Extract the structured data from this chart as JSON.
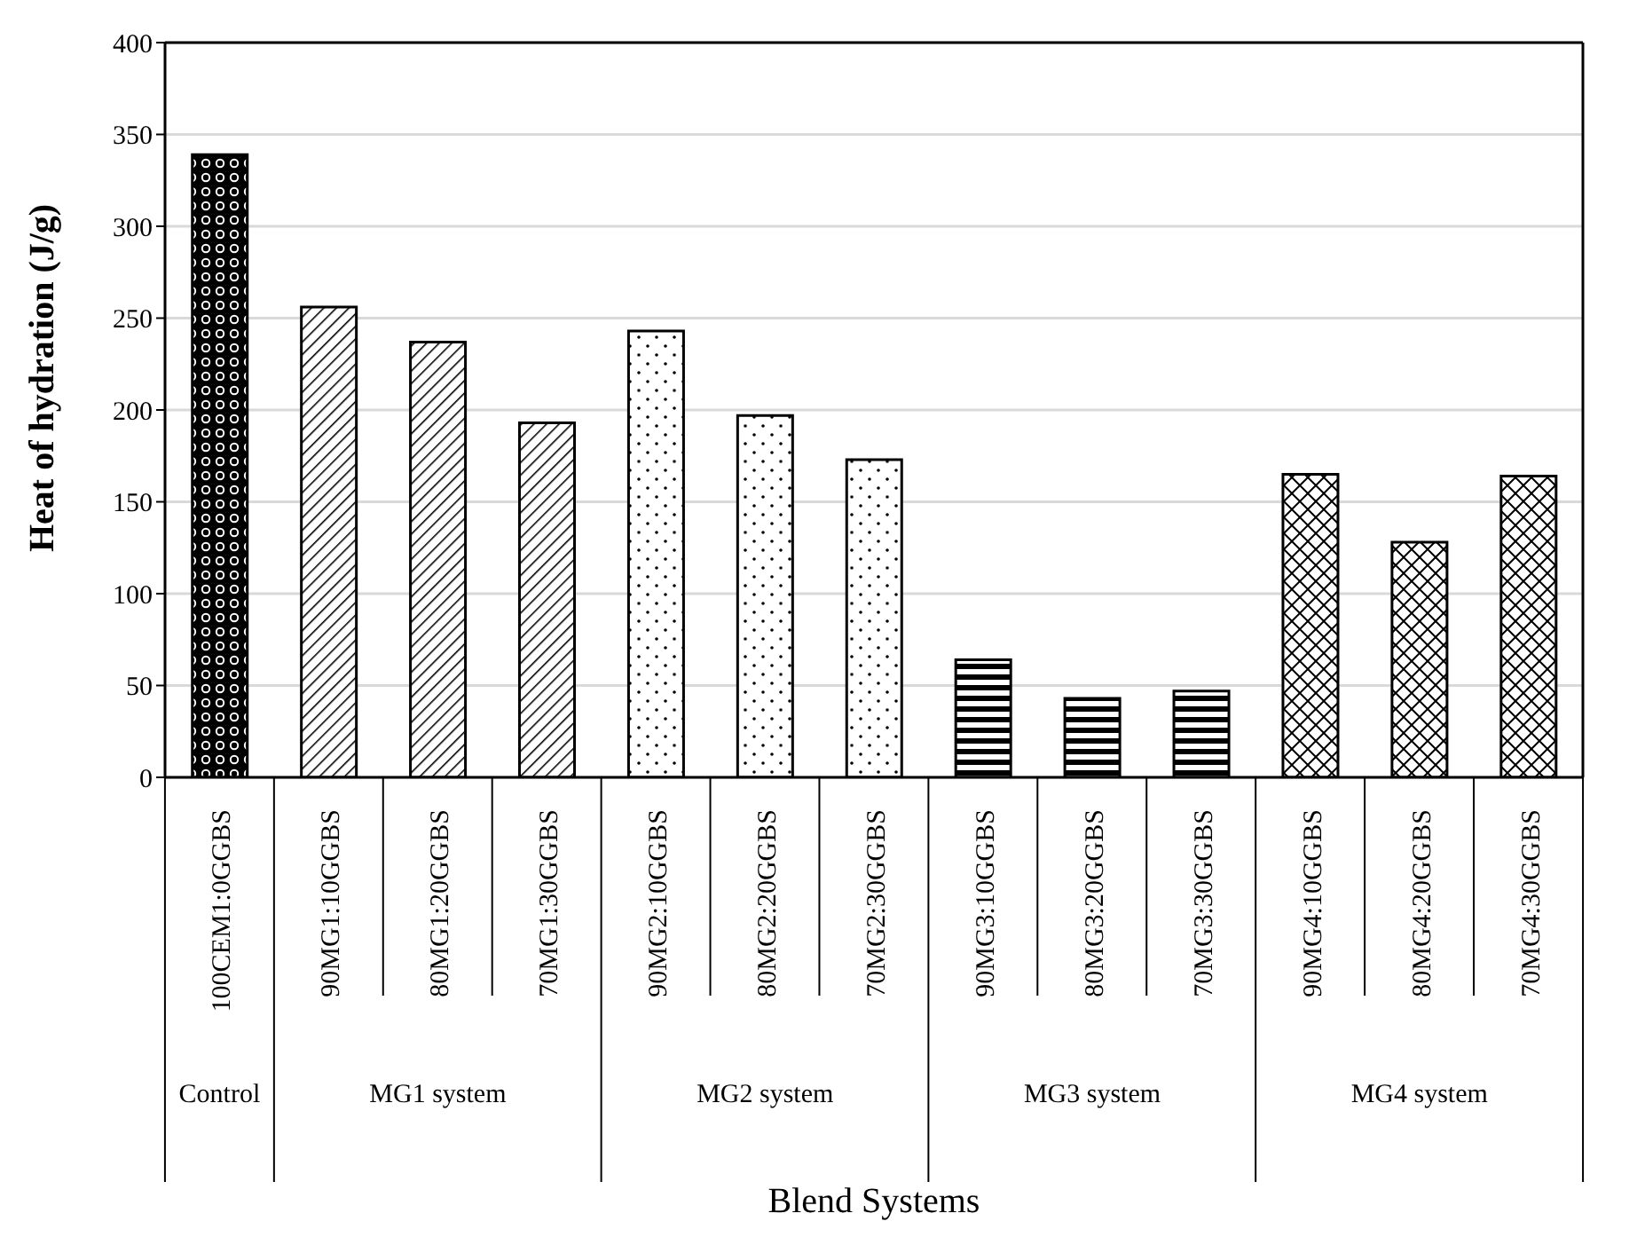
{
  "chart_data": {
    "type": "bar",
    "stacked": true,
    "xlabel": "Blend Systems",
    "ylabel": "Heat of hydration (J/g)",
    "categories": [
      "100CEM1:0GGBS",
      "90MG1:10GGBS",
      "80MG1:20GGBS",
      "70MG1:30GGBS",
      "90MG2:10GGBS",
      "80MG2:20GGBS",
      "70MG2:30GGBS",
      "90MG3:10GGBS",
      "80MG3:20GGBS",
      "70MG3:30GGBS",
      "90MG4:10GGBS",
      "80MG4:20GGBS",
      "70MG4:30GGBS"
    ],
    "series": [
      {
        "color": "#000000",
        "values": [
          339,
          null,
          null,
          null,
          null,
          null,
          null,
          null,
          null,
          null,
          null,
          null,
          null
        ]
      },
      {
        "color": "#000000",
        "values": [
          null,
          256,
          237,
          193,
          null,
          null,
          null,
          null,
          null,
          null,
          null,
          null,
          null
        ]
      },
      {
        "color": "#000000",
        "values": [
          null,
          null,
          null,
          null,
          243,
          197,
          173,
          null,
          null,
          null,
          null,
          null,
          null
        ]
      },
      {
        "color": "#000000",
        "values": [
          null,
          null,
          null,
          null,
          null,
          null,
          null,
          64,
          43,
          47,
          null,
          null,
          null
        ]
      },
      {
        "color": "#000000",
        "values": [
          null,
          null,
          null,
          null,
          null,
          null,
          null,
          null,
          null,
          null,
          165,
          128,
          164
        ]
      }
    ],
    "annotations": [
      "Control",
      "MG1 system",
      "MG2 system",
      "MG3 system",
      "MG4 system"
    ],
    "ylim": [
      0,
      400
    ],
    "yticks": [
      0,
      50,
      100,
      150,
      200,
      250,
      300,
      350,
      400
    ],
    "grid": "y",
    "legend": false
  }
}
